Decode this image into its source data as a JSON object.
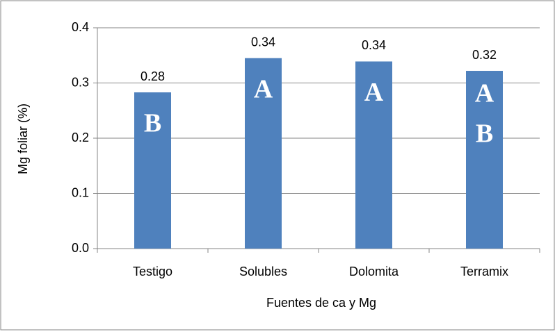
{
  "chart_data": {
    "type": "bar",
    "categories": [
      "Testigo",
      "Solubles",
      "Dolomita",
      "Terramix"
    ],
    "values": [
      0.283,
      0.345,
      0.339,
      0.322
    ],
    "value_labels": [
      "0.28",
      "0.34",
      "0.34",
      "0.32"
    ],
    "annotations": [
      [
        "B"
      ],
      [
        "A"
      ],
      [
        "A"
      ],
      [
        "A",
        "B"
      ]
    ],
    "color": "#4f81bd",
    "x_label": "Fuentes de ca y Mg",
    "y_label": "Mg foliar (%)",
    "ylim": [
      0,
      0.4
    ],
    "yticks": [
      {
        "value": 0,
        "label": "0.0"
      },
      0.1,
      0.2,
      0.3,
      0.4
    ],
    "grid": true
  }
}
